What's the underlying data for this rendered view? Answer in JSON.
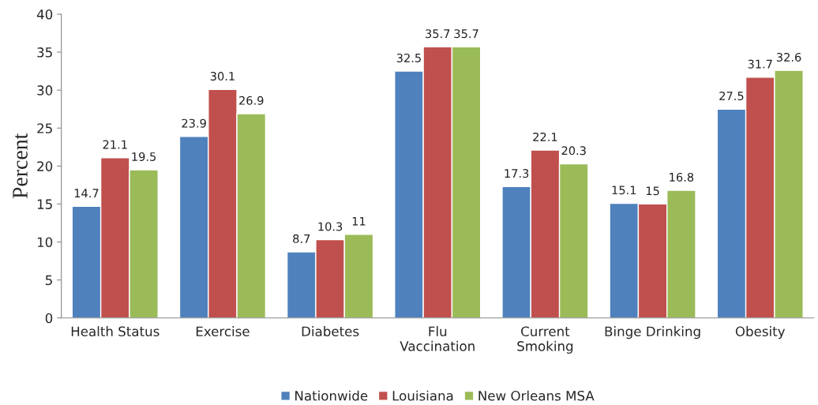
{
  "chart_data": {
    "type": "bar",
    "ylabel": "Percent",
    "categories": [
      "Health Status",
      "Exercise",
      "Diabetes",
      "Flu\nVaccination",
      "Current\nSmoking",
      "Binge Drinking",
      "Obesity"
    ],
    "series": [
      {
        "name": "Nationwide",
        "color": "#4f81bd",
        "values": [
          14.7,
          23.9,
          8.7,
          32.5,
          17.3,
          15.1,
          27.5
        ]
      },
      {
        "name": "Louisiana",
        "color": "#c0504d",
        "values": [
          21.1,
          30.1,
          10.3,
          35.7,
          22.1,
          15,
          31.7
        ]
      },
      {
        "name": "New Orleans MSA",
        "color": "#9bbb59",
        "values": [
          19.5,
          26.9,
          11,
          35.7,
          20.3,
          16.8,
          32.6
        ]
      }
    ],
    "ylim": [
      0,
      40
    ],
    "yticks": [
      0,
      5,
      10,
      15,
      20,
      25,
      30,
      35,
      40
    ],
    "data_labels": true,
    "grid": false,
    "legend": "bottom"
  }
}
